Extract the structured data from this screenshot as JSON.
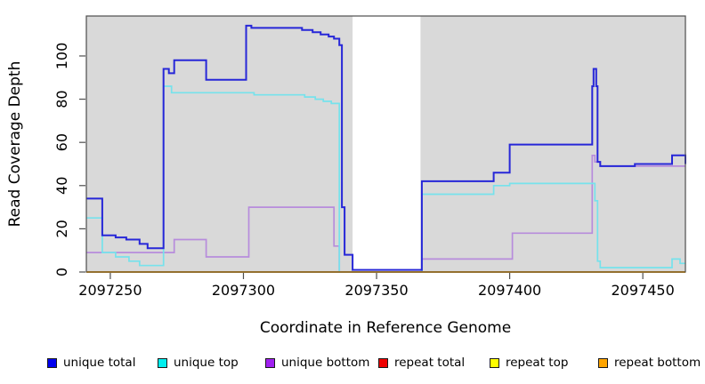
{
  "figure": {
    "background": "#ffffff",
    "plot_background": "#d9d9d9",
    "gap_fill": "#ffffff",
    "axis_color": "#4d4d4d",
    "text_color": "#000000"
  },
  "chart_data": {
    "type": "line",
    "subtype": "step-coverage",
    "title": "",
    "xlabel": "Coordinate in Reference Genome",
    "ylabel": "Read Coverage Depth",
    "xlim": [
      2097241,
      2097466
    ],
    "ylim": [
      0,
      118.5
    ],
    "grid": false,
    "legend_position": "bottom",
    "x_ticks": [
      2097250,
      2097300,
      2097350,
      2097400,
      2097450
    ],
    "x_tick_labels": [
      "2097250",
      "2097300",
      "2097350",
      "2097400",
      "2097450"
    ],
    "y_ticks": [
      0,
      20,
      40,
      60,
      80,
      100
    ],
    "y_tick_labels": [
      "0",
      "20",
      "40",
      "60",
      "80",
      "100"
    ],
    "gap_region": {
      "x0": 2097341,
      "x1": 2097366.5
    },
    "draw_order": [
      3,
      4,
      2,
      1,
      0,
      5
    ],
    "series": [
      {
        "name": "unique total",
        "color": "#2727d8",
        "legend_fill": "#0000ee",
        "width": 2,
        "points": [
          [
            2097241,
            34
          ],
          [
            2097247,
            34
          ],
          [
            2097247,
            17
          ],
          [
            2097252,
            17
          ],
          [
            2097252,
            16
          ],
          [
            2097256,
            16
          ],
          [
            2097256,
            15
          ],
          [
            2097261,
            15
          ],
          [
            2097261,
            13
          ],
          [
            2097264,
            13
          ],
          [
            2097264,
            11
          ],
          [
            2097270,
            11
          ],
          [
            2097270,
            94
          ],
          [
            2097272,
            94
          ],
          [
            2097272,
            92
          ],
          [
            2097274,
            92
          ],
          [
            2097274,
            98
          ],
          [
            2097286,
            98
          ],
          [
            2097286,
            89
          ],
          [
            2097301,
            89
          ],
          [
            2097301,
            114
          ],
          [
            2097303,
            114
          ],
          [
            2097303,
            113
          ],
          [
            2097322,
            113
          ],
          [
            2097322,
            112
          ],
          [
            2097326,
            112
          ],
          [
            2097326,
            111
          ],
          [
            2097329,
            111
          ],
          [
            2097329,
            110
          ],
          [
            2097332,
            110
          ],
          [
            2097332,
            109
          ],
          [
            2097334,
            109
          ],
          [
            2097334,
            108
          ],
          [
            2097336,
            108
          ],
          [
            2097336,
            105
          ],
          [
            2097337,
            105
          ],
          [
            2097337,
            30
          ],
          [
            2097338,
            30
          ],
          [
            2097338,
            8
          ],
          [
            2097341,
            8
          ],
          [
            2097341,
            1
          ],
          [
            2097367,
            1
          ],
          [
            2097367,
            42
          ],
          [
            2097394,
            42
          ],
          [
            2097394,
            46
          ],
          [
            2097400,
            46
          ],
          [
            2097400,
            59
          ],
          [
            2097431,
            59
          ],
          [
            2097431,
            86
          ],
          [
            2097431.5,
            86
          ],
          [
            2097431.5,
            94
          ],
          [
            2097432.5,
            94
          ],
          [
            2097432.5,
            86
          ],
          [
            2097433,
            86
          ],
          [
            2097433,
            51
          ],
          [
            2097434,
            51
          ],
          [
            2097434,
            49
          ],
          [
            2097447,
            49
          ],
          [
            2097447,
            50
          ],
          [
            2097461,
            50
          ],
          [
            2097461,
            54
          ],
          [
            2097466,
            54
          ],
          [
            2097466,
            50
          ]
        ]
      },
      {
        "name": "unique top",
        "color": "#76e2ec",
        "legend_fill": "#00eeee",
        "width": 1.7,
        "points": [
          [
            2097241,
            25
          ],
          [
            2097247,
            25
          ],
          [
            2097247,
            9
          ],
          [
            2097252,
            9
          ],
          [
            2097252,
            7
          ],
          [
            2097257,
            7
          ],
          [
            2097257,
            5
          ],
          [
            2097261,
            5
          ],
          [
            2097261,
            3
          ],
          [
            2097270,
            3
          ],
          [
            2097270,
            86
          ],
          [
            2097273,
            86
          ],
          [
            2097273,
            83
          ],
          [
            2097304,
            83
          ],
          [
            2097304,
            82
          ],
          [
            2097323,
            82
          ],
          [
            2097323,
            81
          ],
          [
            2097327,
            81
          ],
          [
            2097327,
            80
          ],
          [
            2097330,
            80
          ],
          [
            2097330,
            79
          ],
          [
            2097333,
            79
          ],
          [
            2097333,
            78
          ],
          [
            2097336,
            78
          ],
          [
            2097336,
            0
          ],
          [
            2097367,
            0
          ],
          [
            2097367,
            36
          ],
          [
            2097394,
            36
          ],
          [
            2097394,
            40
          ],
          [
            2097400,
            40
          ],
          [
            2097400,
            41
          ],
          [
            2097432,
            41
          ],
          [
            2097432,
            33
          ],
          [
            2097433,
            33
          ],
          [
            2097433,
            5
          ],
          [
            2097434,
            5
          ],
          [
            2097434,
            2
          ],
          [
            2097461,
            2
          ],
          [
            2097461,
            6
          ],
          [
            2097464,
            6
          ],
          [
            2097464,
            4
          ],
          [
            2097466,
            4
          ]
        ]
      },
      {
        "name": "unique bottom",
        "color": "#b78cdc",
        "legend_fill": "#a020f0",
        "width": 1.7,
        "points": [
          [
            2097241,
            9
          ],
          [
            2097274,
            9
          ],
          [
            2097274,
            15
          ],
          [
            2097286,
            15
          ],
          [
            2097286,
            7
          ],
          [
            2097302,
            7
          ],
          [
            2097302,
            30
          ],
          [
            2097334,
            30
          ],
          [
            2097334,
            12
          ],
          [
            2097336,
            12
          ],
          [
            2097336,
            0
          ],
          [
            2097367,
            0
          ],
          [
            2097367,
            6
          ],
          [
            2097401,
            6
          ],
          [
            2097401,
            18
          ],
          [
            2097431,
            18
          ],
          [
            2097431,
            54
          ],
          [
            2097432,
            54
          ],
          [
            2097432,
            51
          ],
          [
            2097434,
            51
          ],
          [
            2097434,
            49
          ],
          [
            2097466,
            49
          ]
        ]
      },
      {
        "name": "repeat total",
        "color": "#dd1100",
        "legend_fill": "#ee0000",
        "width": 1.7,
        "points": [
          [
            2097241,
            0
          ],
          [
            2097466,
            0
          ]
        ]
      },
      {
        "name": "repeat top",
        "color": "#ffff33",
        "legend_fill": "#ffff00",
        "width": 1.7,
        "points": [
          [
            2097241,
            0
          ],
          [
            2097466,
            0
          ]
        ]
      },
      {
        "name": "repeat bottom",
        "color": "#ffa500",
        "legend_fill": "#ffa500",
        "width": 2,
        "points": [
          [
            2097241,
            0
          ],
          [
            2097466,
            0
          ]
        ]
      }
    ],
    "legend_items": [
      "unique total",
      "unique top",
      "unique bottom",
      "repeat total",
      "repeat top",
      "repeat bottom"
    ]
  }
}
